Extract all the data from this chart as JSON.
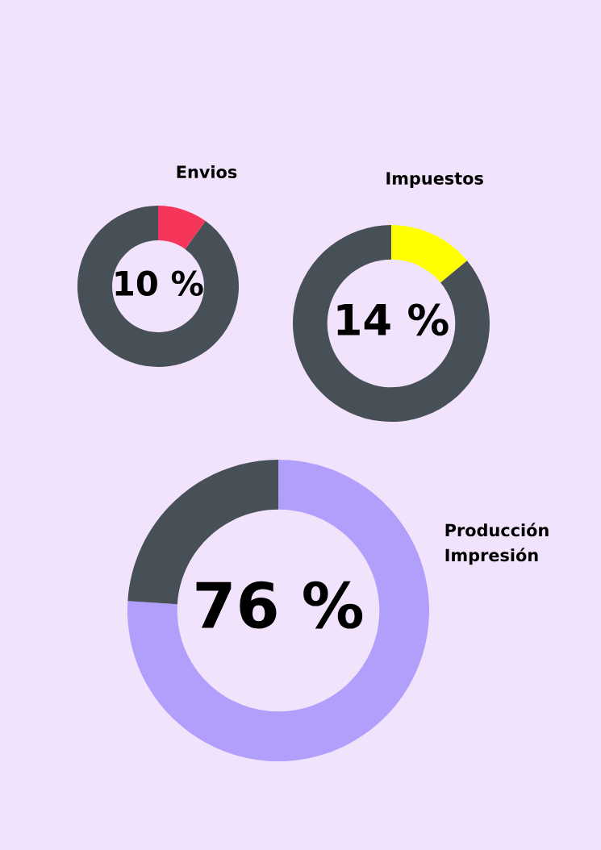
{
  "chart_data": [
    {
      "type": "donut",
      "title": "Envios",
      "categories": [
        null,
        null
      ],
      "values": [
        10,
        90
      ],
      "colors": [
        "#f5355a",
        "#474f57"
      ],
      "value_labels": [
        "10 %",
        null
      ]
    },
    {
      "type": "donut",
      "title": "Impuestos",
      "categories": [
        null,
        null
      ],
      "values": [
        14,
        86
      ],
      "colors": [
        "#ffff00",
        "#474f57"
      ],
      "value_labels": [
        "14 %",
        null
      ]
    },
    {
      "type": "donut",
      "title": "Producción\nImpresión",
      "categories": [
        null,
        null
      ],
      "values": [
        76,
        24
      ],
      "colors": [
        "#b19ffb",
        "#474f57"
      ],
      "value_labels": [
        "76 %",
        null
      ]
    }
  ]
}
